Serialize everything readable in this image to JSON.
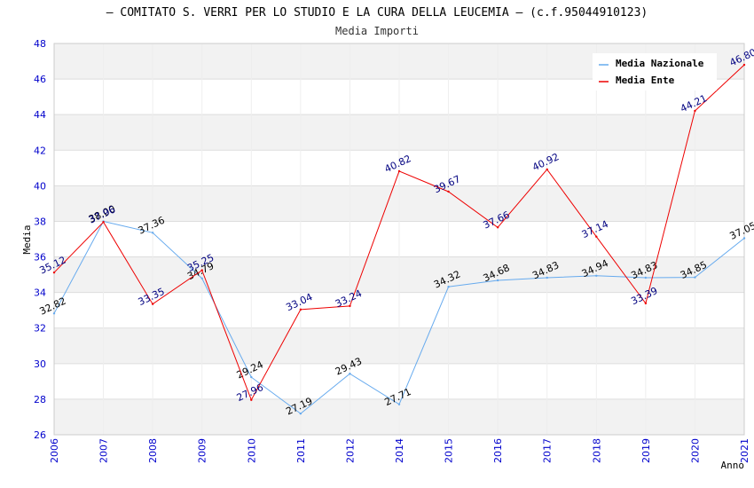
{
  "chart_data": {
    "type": "line",
    "title": "– COMITATO S. VERRI PER LO STUDIO E LA CURA DELLA LEUCEMIA – (c.f.95044910123)",
    "subtitle": "Media Importi",
    "xlabel": "Anno",
    "ylabel": "Media",
    "ylim": [
      26,
      48
    ],
    "yticks": [
      "26",
      "28",
      "30",
      "32",
      "34",
      "36",
      "38",
      "40",
      "42",
      "44",
      "46",
      "48"
    ],
    "categories": [
      "2006",
      "2007",
      "2008",
      "2009",
      "2010",
      "2011",
      "2012",
      "2014",
      "2015",
      "2016",
      "2017",
      "2018",
      "2019",
      "2020",
      "2021"
    ],
    "grid": true,
    "legend_position": "top-right",
    "series": [
      {
        "name": "Media Nazionale",
        "color": "#66aaee",
        "label_color": "#000000",
        "values": [
          32.82,
          38.0,
          37.36,
          34.79,
          29.24,
          27.19,
          29.43,
          27.71,
          34.32,
          34.68,
          34.83,
          34.94,
          34.83,
          34.85,
          37.05
        ],
        "labels": [
          "32.82",
          "38.00",
          "37.36",
          "34.79",
          "29.24",
          "27.19",
          "29.43",
          "27.71",
          "34.32",
          "34.68",
          "34.83",
          "34.94",
          "34.83",
          "34.85",
          "37.05"
        ]
      },
      {
        "name": "Media Ente",
        "color": "#ee0000",
        "label_color": "#000080",
        "values": [
          35.12,
          37.96,
          33.35,
          35.25,
          27.96,
          33.04,
          33.24,
          40.82,
          39.67,
          37.66,
          40.92,
          37.14,
          33.39,
          44.21,
          46.8
        ],
        "labels": [
          "35.12",
          "37.96",
          "33.35",
          "35.25",
          "27.96",
          "33.04",
          "33.24",
          "40.82",
          "39.67",
          "37.66",
          "40.92",
          "37.14",
          "33.39",
          "44.21",
          "46.80"
        ]
      }
    ]
  }
}
